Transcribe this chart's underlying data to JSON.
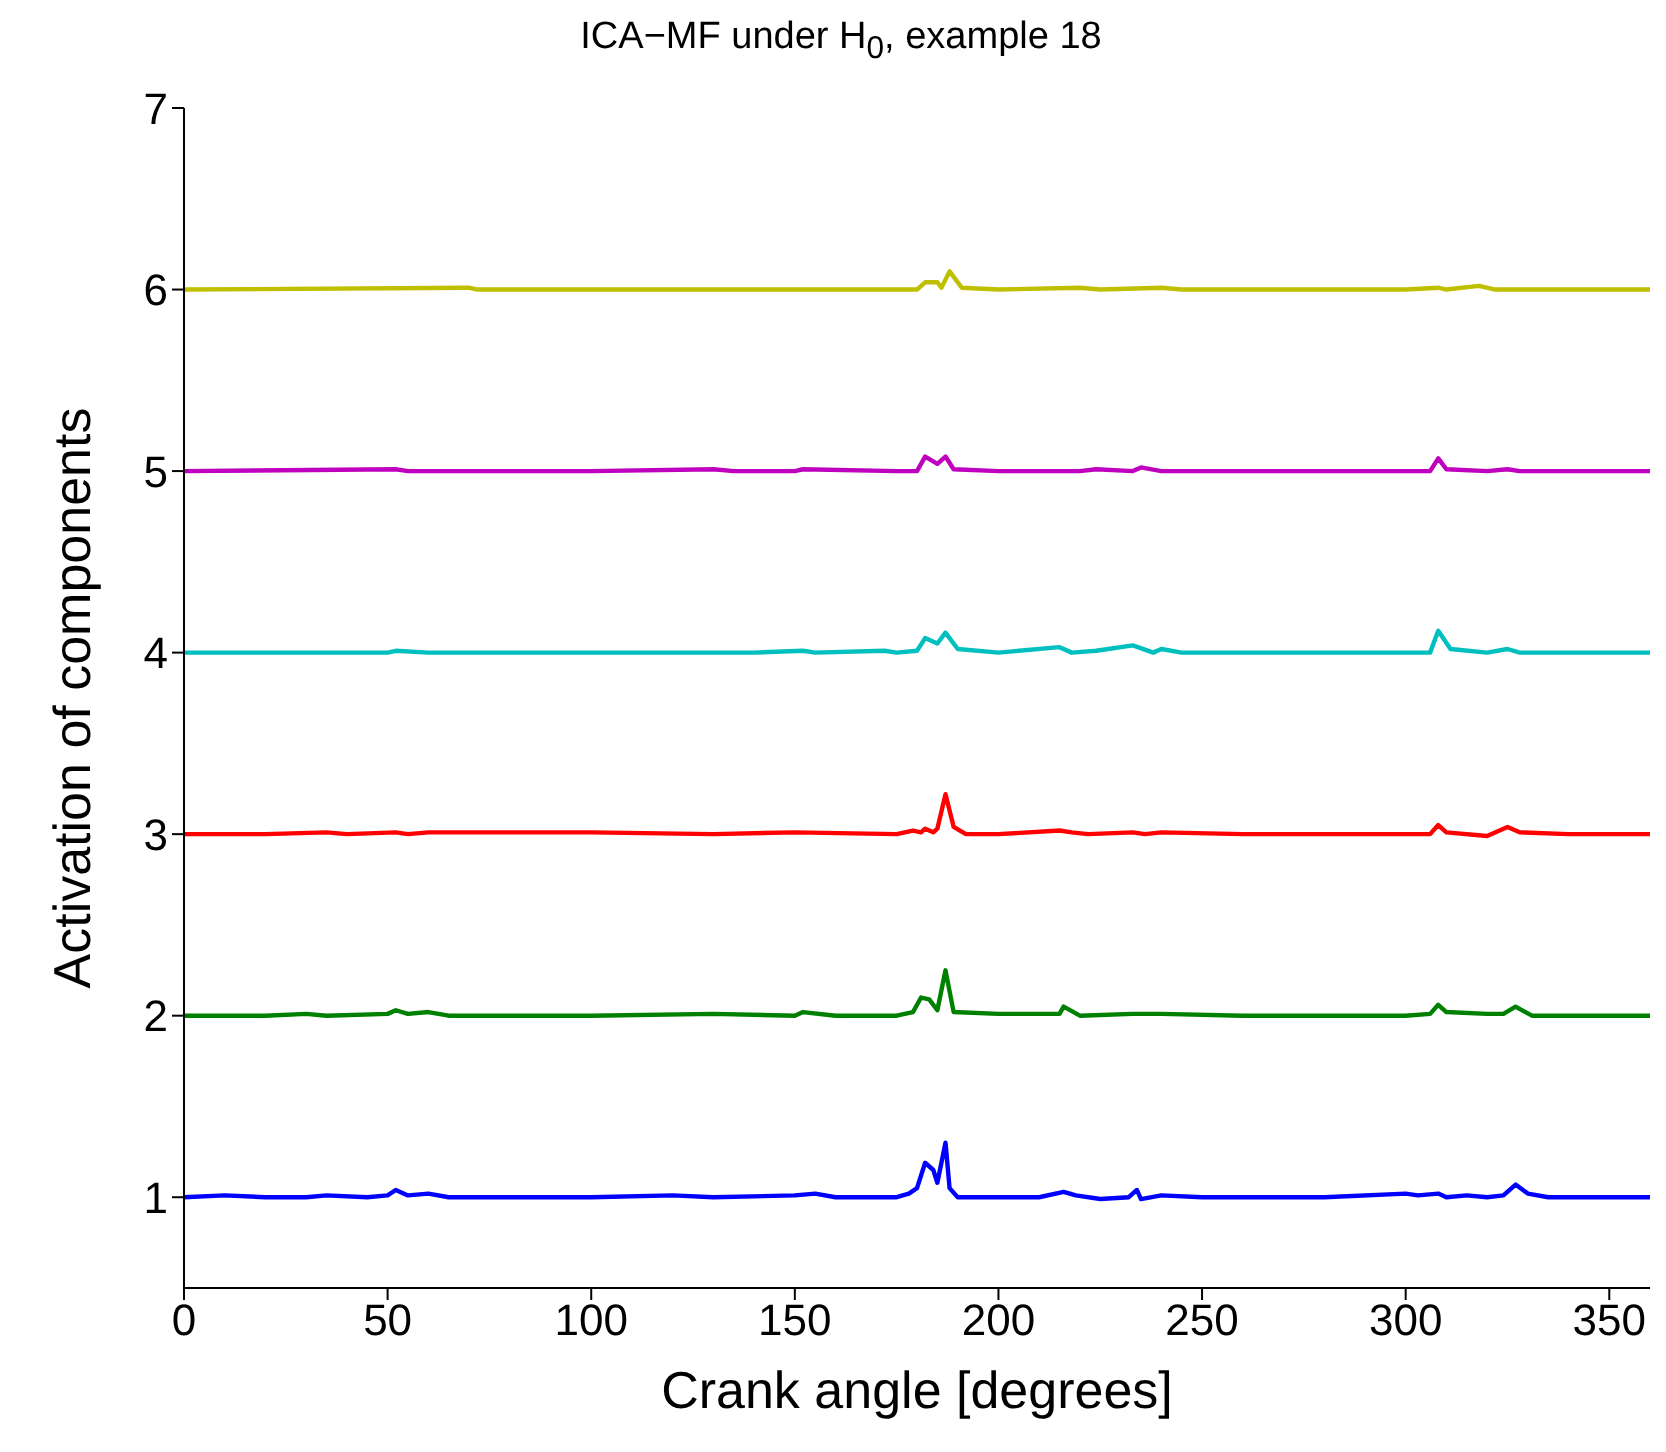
{
  "chart_data": {
    "type": "line",
    "title": "ICA−MF under H$_{0}$, example 18",
    "xlabel": "Crank angle [degrees]",
    "ylabel": "Activation of components",
    "xlim": [
      0,
      360
    ],
    "xticks": [
      0,
      50,
      100,
      150,
      200,
      250,
      300,
      350
    ],
    "ylim": [
      0.5,
      7
    ],
    "yticks": [
      1,
      2,
      3,
      4,
      5,
      6,
      7
    ],
    "grid": false,
    "legend": false,
    "marker": "none",
    "line_style": "solid",
    "series": [
      {
        "color": "#0000ff",
        "x": [
          0,
          10,
          20,
          30,
          35,
          45,
          50,
          52,
          55,
          60,
          65,
          100,
          120,
          130,
          150,
          155,
          160,
          175,
          178,
          180,
          182,
          184,
          185,
          187,
          188,
          190,
          200,
          210,
          216,
          219,
          225,
          232,
          234,
          235,
          240,
          250,
          280,
          300,
          303,
          308,
          310,
          315,
          320,
          324,
          327,
          330,
          335,
          360
        ],
        "values": [
          1,
          1.01,
          1,
          1,
          1.01,
          1,
          1.01,
          1.04,
          1.01,
          1.02,
          1,
          1,
          1.01,
          1,
          1.01,
          1.02,
          1,
          1,
          1.02,
          1.05,
          1.19,
          1.15,
          1.08,
          1.3,
          1.05,
          1,
          1,
          1,
          1.03,
          1.01,
          0.99,
          1,
          1.04,
          0.99,
          1.01,
          1,
          1,
          1.02,
          1.01,
          1.02,
          1,
          1.01,
          1,
          1.01,
          1.07,
          1.02,
          1,
          1
        ]
      },
      {
        "color": "#008000",
        "x": [
          0,
          20,
          30,
          35,
          50,
          52,
          55,
          60,
          65,
          100,
          130,
          150,
          152,
          160,
          175,
          179,
          181,
          183,
          185,
          187,
          189,
          200,
          215,
          216,
          220,
          233,
          240,
          260,
          300,
          306,
          308,
          310,
          320,
          324,
          327,
          331,
          360
        ],
        "values": [
          2,
          2,
          2.01,
          2,
          2.01,
          2.03,
          2.01,
          2.02,
          2,
          2,
          2.01,
          2,
          2.02,
          2,
          2,
          2.02,
          2.1,
          2.09,
          2.03,
          2.25,
          2.02,
          2.01,
          2.01,
          2.05,
          2,
          2.01,
          2.01,
          2,
          2,
          2.01,
          2.06,
          2.02,
          2.01,
          2.01,
          2.05,
          2,
          2
        ]
      },
      {
        "color": "#ff0000",
        "x": [
          0,
          20,
          35,
          40,
          52,
          55,
          60,
          100,
          130,
          150,
          175,
          179,
          181,
          182,
          184,
          185,
          187,
          189,
          192,
          200,
          215,
          218,
          222,
          233,
          236,
          240,
          260,
          300,
          306,
          308,
          310,
          320,
          325,
          328,
          340,
          360
        ],
        "values": [
          3,
          3,
          3.01,
          3,
          3.01,
          3,
          3.01,
          3.01,
          3,
          3.01,
          3,
          3.02,
          3.01,
          3.03,
          3.01,
          3.03,
          3.22,
          3.04,
          3,
          3,
          3.02,
          3.01,
          3,
          3.01,
          3,
          3.01,
          3,
          3,
          3,
          3.05,
          3.01,
          2.99,
          3.04,
          3.01,
          3,
          3
        ]
      },
      {
        "color": "#00bfbf",
        "x": [
          0,
          50,
          52,
          60,
          100,
          140,
          152,
          155,
          172,
          175,
          180,
          182,
          185,
          187,
          190,
          200,
          215,
          218,
          224,
          233,
          238,
          240,
          245,
          300,
          306,
          308,
          311,
          320,
          325,
          328,
          360
        ],
        "values": [
          4,
          4,
          4.01,
          4,
          4,
          4,
          4.01,
          4,
          4.01,
          4,
          4.01,
          4.08,
          4.05,
          4.11,
          4.02,
          4,
          4.03,
          4,
          4.01,
          4.04,
          4,
          4.02,
          4,
          4,
          4,
          4.12,
          4.02,
          4,
          4.02,
          4,
          4
        ]
      },
      {
        "color": "#bf00bf",
        "x": [
          0,
          52,
          55,
          100,
          130,
          135,
          150,
          152,
          175,
          180,
          182,
          185,
          187,
          189,
          200,
          220,
          224,
          233,
          235,
          240,
          300,
          306,
          308,
          310,
          320,
          325,
          328,
          360
        ],
        "values": [
          5,
          5.01,
          5,
          5,
          5.01,
          5,
          5,
          5.01,
          5,
          5,
          5.08,
          5.04,
          5.08,
          5.01,
          5,
          5,
          5.01,
          5,
          5.02,
          5,
          5,
          5,
          5.07,
          5.01,
          5,
          5.01,
          5,
          5
        ]
      },
      {
        "color": "#bfbf00",
        "x": [
          0,
          70,
          72,
          100,
          150,
          175,
          180,
          182,
          185,
          186,
          188,
          191,
          200,
          220,
          225,
          240,
          245,
          300,
          308,
          310,
          318,
          322,
          360
        ],
        "values": [
          6,
          6.01,
          6,
          6,
          6,
          6,
          6,
          6.04,
          6.04,
          6.01,
          6.1,
          6.01,
          6,
          6.01,
          6,
          6.01,
          6,
          6,
          6.01,
          6,
          6.02,
          6,
          6
        ]
      }
    ]
  }
}
